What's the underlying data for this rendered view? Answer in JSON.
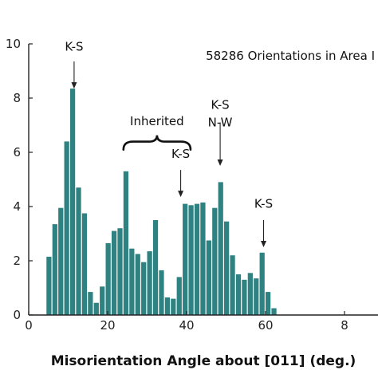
{
  "chart_data": {
    "type": "bar",
    "xlabel": "Misorientation Angle about [011] (deg.)",
    "ylabel": "",
    "xlim": [
      0,
      80
    ],
    "ylim": [
      0,
      10
    ],
    "xticks": [
      "0",
      "20",
      "40",
      "60",
      "8"
    ],
    "yticks": [
      "0",
      "2",
      "4",
      "6",
      "8",
      "10"
    ],
    "bar_width_deg": 1.5,
    "bar_color": "#2e8281",
    "bars": [
      {
        "x": 4.5,
        "y": 2.15
      },
      {
        "x": 6.0,
        "y": 3.35
      },
      {
        "x": 7.5,
        "y": 3.95
      },
      {
        "x": 9.0,
        "y": 6.4
      },
      {
        "x": 10.5,
        "y": 8.35
      },
      {
        "x": 12.0,
        "y": 4.7
      },
      {
        "x": 13.5,
        "y": 3.75
      },
      {
        "x": 15.0,
        "y": 0.85
      },
      {
        "x": 16.5,
        "y": 0.45
      },
      {
        "x": 18.0,
        "y": 1.05
      },
      {
        "x": 19.5,
        "y": 2.65
      },
      {
        "x": 21.0,
        "y": 3.1
      },
      {
        "x": 22.5,
        "y": 3.2
      },
      {
        "x": 24.0,
        "y": 5.3
      },
      {
        "x": 25.5,
        "y": 2.45
      },
      {
        "x": 27.0,
        "y": 2.25
      },
      {
        "x": 28.5,
        "y": 1.95
      },
      {
        "x": 30.0,
        "y": 2.35
      },
      {
        "x": 31.5,
        "y": 3.5
      },
      {
        "x": 33.0,
        "y": 1.65
      },
      {
        "x": 34.5,
        "y": 0.65
      },
      {
        "x": 36.0,
        "y": 0.6
      },
      {
        "x": 37.5,
        "y": 1.4
      },
      {
        "x": 39.0,
        "y": 4.1
      },
      {
        "x": 40.5,
        "y": 4.05
      },
      {
        "x": 42.0,
        "y": 4.1
      },
      {
        "x": 43.5,
        "y": 4.15
      },
      {
        "x": 45.0,
        "y": 2.75
      },
      {
        "x": 46.5,
        "y": 3.95
      },
      {
        "x": 48.0,
        "y": 4.9
      },
      {
        "x": 49.5,
        "y": 3.45
      },
      {
        "x": 51.0,
        "y": 2.2
      },
      {
        "x": 52.5,
        "y": 1.5
      },
      {
        "x": 54.0,
        "y": 1.3
      },
      {
        "x": 55.5,
        "y": 1.55
      },
      {
        "x": 57.0,
        "y": 1.35
      },
      {
        "x": 58.5,
        "y": 2.3
      },
      {
        "x": 60.0,
        "y": 0.85
      },
      {
        "x": 61.5,
        "y": 0.25
      }
    ],
    "annotations": [
      {
        "label": "K-S",
        "x": 11.5,
        "text_y": 9.75,
        "arrow_from": 9.35,
        "arrow_to": 8.35
      },
      {
        "label": "K-S",
        "x": 48.5,
        "text_y": 7.6,
        "arrow_from": 7.1,
        "arrow_to": 5.5
      },
      {
        "label": "N-W",
        "x": 48.5,
        "text_y": 6.95,
        "arrow_from": null,
        "arrow_to": null
      },
      {
        "label": "K-S",
        "x": 38.5,
        "text_y": 5.8,
        "arrow_from": 5.35,
        "arrow_to": 4.35
      },
      {
        "label": "K-S",
        "x": 59.5,
        "text_y": 3.95,
        "arrow_from": 3.5,
        "arrow_to": 2.5
      }
    ],
    "inherited_label": "Inherited",
    "inherited_brace": {
      "x_from": 24.0,
      "x_to": 41.0,
      "y": 6.1,
      "text_y": 7.0
    },
    "inset_text": "58286 Orientations in Area I",
    "grid": false,
    "legend": "none"
  }
}
